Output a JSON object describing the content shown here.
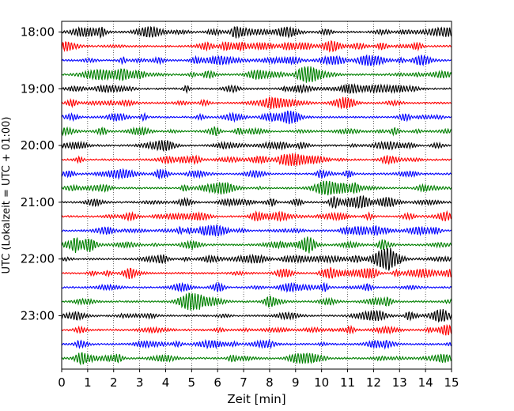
{
  "chart_data": {
    "type": "line",
    "title": "",
    "xlabel": "Zeit  [min]",
    "ylabel": "UTC (Lokalzeit = UTC + 01:00)",
    "xlim": [
      0,
      15
    ],
    "x_ticks": [
      "0",
      "1",
      "2",
      "3",
      "4",
      "5",
      "6",
      "7",
      "8",
      "9",
      "10",
      "11",
      "12",
      "13",
      "14",
      "15"
    ],
    "y_ticks": [
      "18:00",
      "19:00",
      "20:00",
      "21:00",
      "22:00",
      "23:00"
    ],
    "trace_interval_min": 15,
    "grid": "vertical dotted at each minute",
    "trace_colors": [
      "#000000",
      "#ff0000",
      "#0000ff",
      "#008000"
    ],
    "rows": [
      {
        "start": "18:00",
        "color": "#000000"
      },
      {
        "start": "18:15",
        "color": "#ff0000"
      },
      {
        "start": "18:30",
        "color": "#0000ff"
      },
      {
        "start": "18:45",
        "color": "#008000"
      },
      {
        "start": "19:00",
        "color": "#000000"
      },
      {
        "start": "19:15",
        "color": "#ff0000"
      },
      {
        "start": "19:30",
        "color": "#0000ff"
      },
      {
        "start": "19:45",
        "color": "#008000"
      },
      {
        "start": "20:00",
        "color": "#000000"
      },
      {
        "start": "20:15",
        "color": "#ff0000"
      },
      {
        "start": "20:30",
        "color": "#0000ff"
      },
      {
        "start": "20:45",
        "color": "#008000"
      },
      {
        "start": "21:00",
        "color": "#000000"
      },
      {
        "start": "21:15",
        "color": "#ff0000"
      },
      {
        "start": "21:30",
        "color": "#0000ff"
      },
      {
        "start": "21:45",
        "color": "#008000"
      },
      {
        "start": "22:00",
        "color": "#000000"
      },
      {
        "start": "22:15",
        "color": "#ff0000"
      },
      {
        "start": "22:30",
        "color": "#0000ff"
      },
      {
        "start": "22:45",
        "color": "#008000"
      },
      {
        "start": "23:00",
        "color": "#000000"
      },
      {
        "start": "23:15",
        "color": "#ff0000"
      },
      {
        "start": "23:30",
        "color": "#0000ff"
      },
      {
        "start": "23:45",
        "color": "#008000"
      }
    ]
  }
}
